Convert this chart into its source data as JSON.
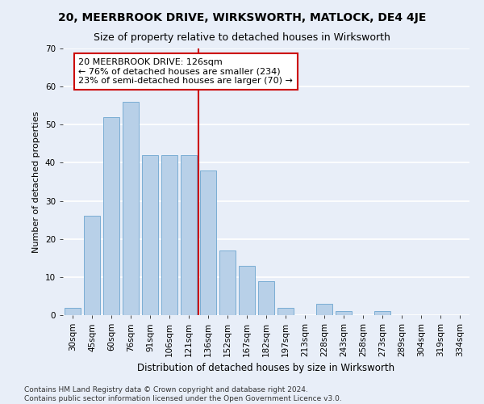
{
  "title": "20, MEERBROOK DRIVE, WIRKSWORTH, MATLOCK, DE4 4JE",
  "subtitle": "Size of property relative to detached houses in Wirksworth",
  "xlabel": "Distribution of detached houses by size in Wirksworth",
  "ylabel": "Number of detached properties",
  "categories": [
    "30sqm",
    "45sqm",
    "60sqm",
    "76sqm",
    "91sqm",
    "106sqm",
    "121sqm",
    "136sqm",
    "152sqm",
    "167sqm",
    "182sqm",
    "197sqm",
    "213sqm",
    "228sqm",
    "243sqm",
    "258sqm",
    "273sqm",
    "289sqm",
    "304sqm",
    "319sqm",
    "334sqm"
  ],
  "values": [
    2,
    26,
    52,
    56,
    42,
    42,
    42,
    38,
    17,
    13,
    9,
    2,
    0,
    3,
    1,
    0,
    1,
    0,
    0,
    0,
    0
  ],
  "bar_color": "#b8d0e8",
  "bar_edgecolor": "#7aadd4",
  "vline_index": 7,
  "vline_color": "#cc0000",
  "annotation_text": "20 MEERBROOK DRIVE: 126sqm\n← 76% of detached houses are smaller (234)\n23% of semi-detached houses are larger (70) →",
  "annotation_box_facecolor": "#ffffff",
  "annotation_box_edgecolor": "#cc0000",
  "ylim": [
    0,
    70
  ],
  "yticks": [
    0,
    10,
    20,
    30,
    40,
    50,
    60,
    70
  ],
  "footer_line1": "Contains HM Land Registry data © Crown copyright and database right 2024.",
  "footer_line2": "Contains public sector information licensed under the Open Government Licence v3.0.",
  "background_color": "#e8eef8",
  "plot_background_color": "#e8eef8",
  "title_fontsize": 10,
  "subtitle_fontsize": 9,
  "xlabel_fontsize": 8.5,
  "ylabel_fontsize": 8,
  "tick_fontsize": 7.5,
  "footer_fontsize": 6.5,
  "annotation_fontsize": 8
}
